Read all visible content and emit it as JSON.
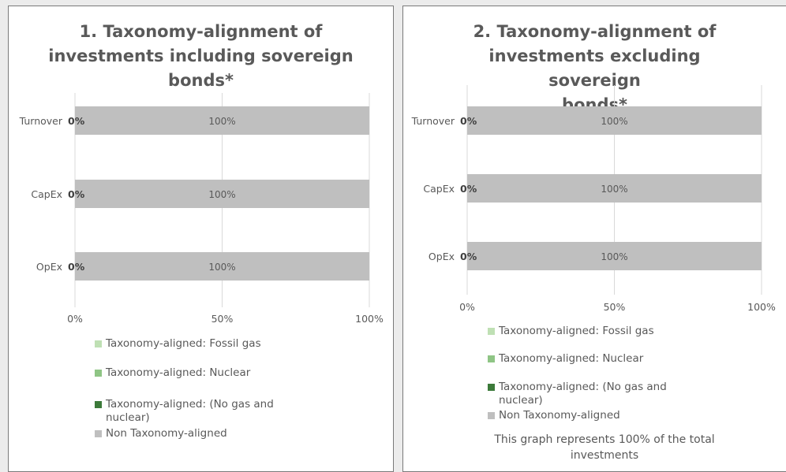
{
  "colors": {
    "fossil_gas": "#bfe0b4",
    "nuclear": "#8fc585",
    "no_gas_nuclear": "#3c7a3a",
    "non_aligned": "#bfbfbf",
    "gridline": "#d9d9d9",
    "text": "#595959"
  },
  "legend": [
    {
      "key": "fossil_gas",
      "label": "Taxonomy-aligned: Fossil gas"
    },
    {
      "key": "nuclear",
      "label": "Taxonomy-aligned: Nuclear"
    },
    {
      "key": "no_gas_nuclear",
      "label": "Taxonomy-aligned: (No gas and nuclear)"
    },
    {
      "key": "non_aligned",
      "label": "Non Taxonomy-aligned"
    }
  ],
  "note": "This graph represents 100% of the total investments",
  "chart_data": [
    {
      "type": "bar",
      "orientation": "horizontal",
      "stacked": true,
      "title": "1. Taxonomy-alignment of investments including sovereign bonds*",
      "categories": [
        "Turnover",
        "CapEx",
        "OpEx"
      ],
      "series": [
        {
          "name": "Taxonomy-aligned: Fossil gas",
          "values": [
            0,
            0,
            0
          ]
        },
        {
          "name": "Taxonomy-aligned: Nuclear",
          "values": [
            0,
            0,
            0
          ]
        },
        {
          "name": "Taxonomy-aligned: (No gas and nuclear)",
          "values": [
            0,
            0,
            0
          ]
        },
        {
          "name": "Non Taxonomy-aligned",
          "values": [
            100,
            100,
            100
          ]
        }
      ],
      "aligned_labels": [
        "0%",
        "0%",
        "0%"
      ],
      "value_labels": [
        "100%",
        "100%",
        "100%"
      ],
      "xlim": [
        0,
        100
      ],
      "x_ticks": [
        "0%",
        "50%",
        "100%"
      ],
      "grid": true,
      "legend_position": "bottom"
    },
    {
      "type": "bar",
      "orientation": "horizontal",
      "stacked": true,
      "title": "2. Taxonomy-alignment of investments excluding sovereign bonds*",
      "categories": [
        "Turnover",
        "CapEx",
        "OpEx"
      ],
      "series": [
        {
          "name": "Taxonomy-aligned: Fossil gas",
          "values": [
            0,
            0,
            0
          ]
        },
        {
          "name": "Taxonomy-aligned: Nuclear",
          "values": [
            0,
            0,
            0
          ]
        },
        {
          "name": "Taxonomy-aligned: (No gas and nuclear)",
          "values": [
            0,
            0,
            0
          ]
        },
        {
          "name": "Non Taxonomy-aligned",
          "values": [
            100,
            100,
            100
          ]
        }
      ],
      "aligned_labels": [
        "0%",
        "0%",
        "0%"
      ],
      "value_labels": [
        "100%",
        "100%",
        "100%"
      ],
      "xlim": [
        0,
        100
      ],
      "x_ticks": [
        "0%",
        "50%",
        "100%"
      ],
      "grid": true,
      "legend_position": "bottom"
    }
  ]
}
